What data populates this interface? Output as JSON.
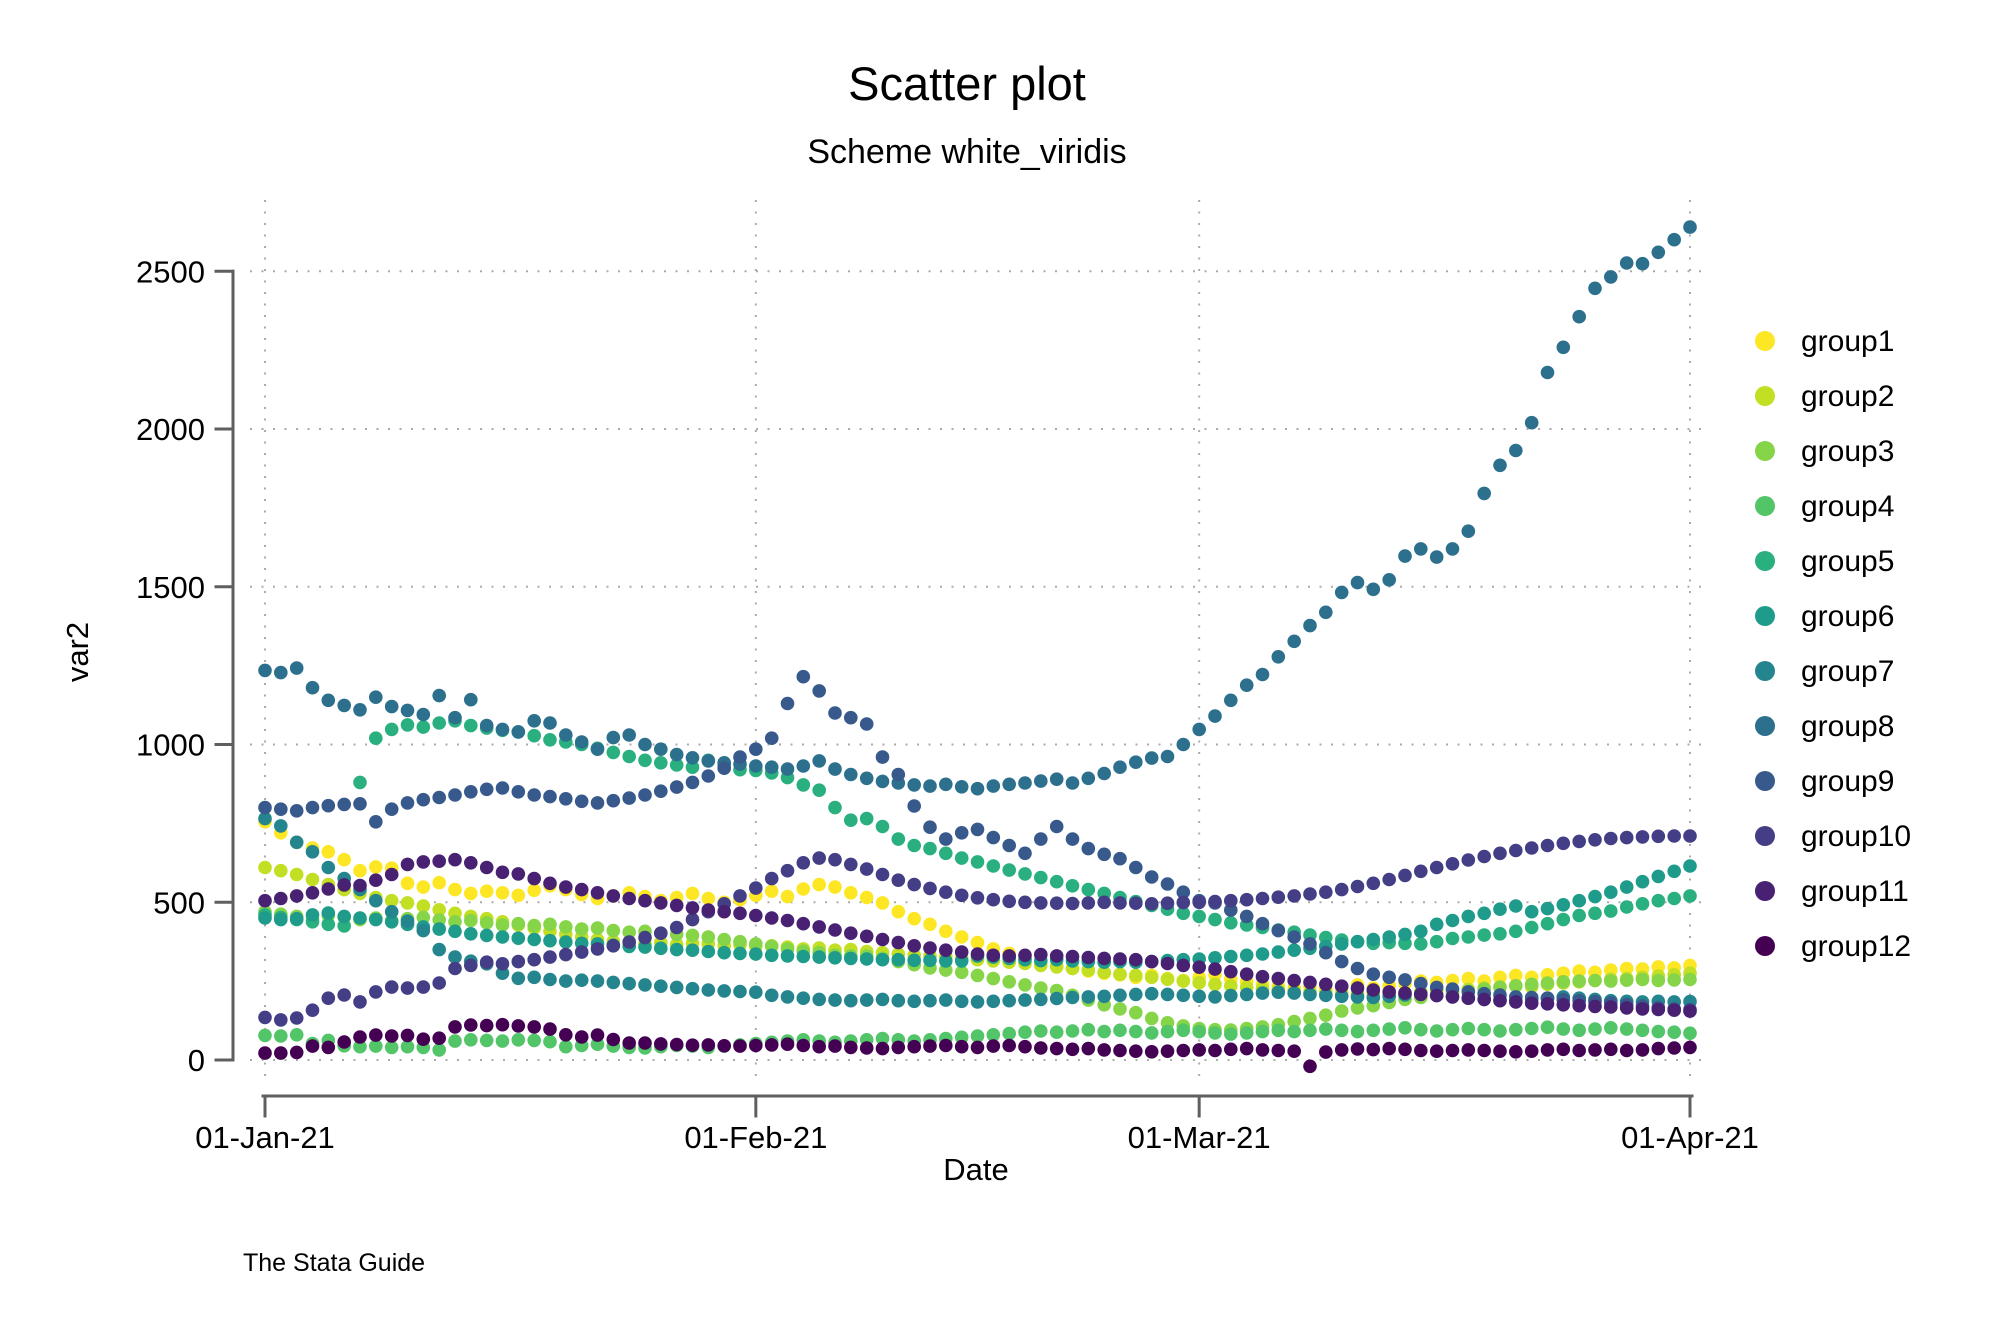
{
  "header": {
    "title": "Scatter plot",
    "subtitle": "Scheme white_viridis"
  },
  "watermark": "The Stata Guide",
  "chart_data": {
    "type": "scatter",
    "title": "Scatter plot",
    "subtitle": "Scheme white_viridis",
    "xlabel": "Date",
    "ylabel": "var2",
    "grid": true,
    "legend_position": "right",
    "x_unit": "days since 01-Jan-21, one point per day",
    "x_tick_labels": [
      "01-Jan-21",
      "01-Feb-21",
      "01-Mar-21",
      "01-Apr-21"
    ],
    "x_tick_days": [
      0,
      31,
      59,
      90
    ],
    "y_tick_labels": [
      "0",
      "500",
      "1000",
      "1500",
      "2000",
      "2500"
    ],
    "y_ticks": [
      0,
      500,
      1000,
      1500,
      2000,
      2500
    ],
    "ylim": [
      -60,
      2720
    ],
    "series": [
      {
        "name": "group1",
        "color": "#fde725",
        "values": [
          755,
          720,
          690,
          672,
          660,
          635,
          600,
          612,
          608,
          560,
          548,
          562,
          540,
          528,
          535,
          530,
          522,
          538,
          552,
          540,
          525,
          512,
          520,
          530,
          518,
          505,
          515,
          528,
          512,
          500,
          508,
          522,
          535,
          518,
          542,
          556,
          548,
          530,
          515,
          498,
          470,
          448,
          430,
          408,
          390,
          372,
          352,
          338,
          322,
          308,
          298,
          290,
          282,
          275,
          270,
          262,
          268,
          258,
          252,
          262,
          270,
          256,
          248,
          240,
          235,
          228,
          232,
          225,
          230,
          238,
          228,
          235,
          242,
          250,
          246,
          252,
          258,
          250,
          262,
          268,
          262,
          270,
          275,
          282,
          278,
          285,
          290,
          288,
          295,
          292,
          300
        ]
      },
      {
        "name": "group2",
        "color": "#c2df23",
        "values": [
          610,
          600,
          588,
          572,
          556,
          540,
          528,
          515,
          505,
          498,
          488,
          476,
          465,
          455,
          448,
          438,
          428,
          418,
          408,
          398,
          390,
          382,
          376,
          372,
          368,
          372,
          366,
          370,
          368,
          362,
          365,
          360,
          362,
          358,
          352,
          355,
          348,
          350,
          344,
          340,
          336,
          332,
          330,
          328,
          322,
          318,
          314,
          310,
          306,
          300,
          295,
          290,
          285,
          278,
          272,
          268,
          262,
          256,
          250,
          245,
          240,
          235,
          230,
          226,
          222,
          219,
          216,
          214,
          212,
          210,
          212,
          214,
          212,
          216,
          220,
          218,
          224,
          228,
          232,
          236,
          232,
          240,
          244,
          248,
          252,
          256,
          258,
          262,
          266,
          270,
          275
        ]
      },
      {
        "name": "group3",
        "color": "#86d549",
        "values": [
          470,
          462,
          455,
          448,
          458,
          452,
          445,
          450,
          442,
          448,
          452,
          444,
          438,
          442,
          435,
          428,
          432,
          426,
          430,
          422,
          415,
          418,
          410,
          405,
          408,
          402,
          398,
          395,
          390,
          382,
          375,
          368,
          360,
          352,
          345,
          340,
          332,
          330,
          330,
          322,
          312,
          302,
          292,
          285,
          278,
          268,
          258,
          248,
          238,
          228,
          220,
          205,
          190,
          175,
          162,
          150,
          132,
          118,
          108,
          100,
          96,
          95,
          100,
          105,
          112,
          122,
          132,
          142,
          155,
          165,
          172,
          182,
          192,
          198,
          205,
          212,
          218,
          225,
          230,
          235,
          240,
          244,
          248,
          250,
          252,
          250,
          253,
          255,
          252,
          254,
          255
        ]
      },
      {
        "name": "group4",
        "color": "#52c569",
        "values": [
          78,
          76,
          80,
          52,
          62,
          45,
          42,
          44,
          40,
          42,
          40,
          32,
          60,
          64,
          62,
          60,
          64,
          62,
          58,
          42,
          46,
          50,
          44,
          40,
          38,
          42,
          46,
          44,
          40,
          44,
          48,
          52,
          56,
          60,
          64,
          60,
          56,
          60,
          64,
          68,
          64,
          60,
          64,
          68,
          72,
          76,
          80,
          84,
          88,
          92,
          88,
          92,
          96,
          90,
          94,
          90,
          86,
          90,
          94,
          90,
          86,
          82,
          86,
          90,
          94,
          90,
          94,
          98,
          94,
          90,
          94,
          98,
          102,
          96,
          92,
          96,
          100,
          96,
          92,
          96,
          100,
          104,
          98,
          94,
          98,
          102,
          98,
          94,
          90,
          88,
          85
        ]
      },
      {
        "name": "group5",
        "color": "#2ab07f",
        "values": [
          460,
          452,
          445,
          438,
          430,
          425,
          880,
          1020,
          1048,
          1062,
          1055,
          1068,
          1075,
          1060,
          1052,
          1045,
          1040,
          1028,
          1015,
          1008,
          1000,
          988,
          975,
          962,
          950,
          942,
          935,
          928,
          950,
          935,
          920,
          918,
          910,
          895,
          872,
          855,
          800,
          760,
          765,
          740,
          700,
          680,
          670,
          655,
          640,
          628,
          615,
          602,
          590,
          578,
          565,
          552,
          540,
          528,
          515,
          502,
          490,
          478,
          465,
          455,
          445,
          435,
          428,
          420,
          412,
          405,
          396,
          388,
          380,
          375,
          370,
          372,
          370,
          368,
          375,
          385,
          390,
          396,
          400,
          408,
          420,
          432,
          445,
          458,
          465,
          472,
          485,
          495,
          505,
          512,
          520
        ]
      },
      {
        "name": "group6",
        "color": "#1e9b8a",
        "values": [
          450,
          445,
          448,
          460,
          466,
          455,
          450,
          445,
          438,
          430,
          422,
          415,
          408,
          400,
          395,
          390,
          386,
          382,
          378,
          374,
          370,
          368,
          364,
          360,
          358,
          354,
          350,
          348,
          344,
          340,
          338,
          336,
          332,
          330,
          328,
          326,
          324,
          322,
          320,
          318,
          318,
          316,
          316,
          314,
          314,
          330,
          326,
          322,
          318,
          315,
          318,
          314,
          312,
          310,
          312,
          310,
          312,
          315,
          318,
          320,
          324,
          328,
          332,
          336,
          342,
          348,
          354,
          360,
          368,
          375,
          382,
          390,
          398,
          408,
          430,
          442,
          455,
          465,
          478,
          488,
          470,
          480,
          492,
          505,
          518,
          532,
          548,
          565,
          582,
          598,
          615
        ]
      },
      {
        "name": "group7",
        "color": "#25858e",
        "values": [
          765,
          742,
          690,
          660,
          610,
          575,
          540,
          505,
          470,
          440,
          410,
          350,
          326,
          313,
          305,
          275,
          259,
          262,
          255,
          250,
          253,
          250,
          246,
          242,
          238,
          234,
          230,
          226,
          222,
          219,
          217,
          215,
          205,
          200,
          196,
          192,
          190,
          188,
          190,
          192,
          188,
          186,
          188,
          190,
          186,
          184,
          186,
          188,
          190,
          192,
          195,
          198,
          200,
          202,
          205,
          208,
          210,
          208,
          205,
          202,
          200,
          204,
          208,
          212,
          215,
          212,
          208,
          205,
          202,
          200,
          198,
          202,
          206,
          210,
          205,
          200,
          196,
          192,
          190,
          188,
          192,
          196,
          200,
          196,
          192,
          188,
          186,
          184,
          186,
          184,
          185
        ]
      },
      {
        "name": "group8",
        "color": "#2d708e",
        "values": [
          1235,
          1228,
          1242,
          1180,
          1140,
          1124,
          1110,
          1150,
          1120,
          1108,
          1095,
          1155,
          1085,
          1142,
          1060,
          1048,
          1040,
          1075,
          1068,
          1030,
          1008,
          985,
          1022,
          1030,
          1000,
          985,
          968,
          958,
          948,
          942,
          938,
          932,
          928,
          922,
          932,
          948,
          922,
          905,
          893,
          883,
          878,
          872,
          868,
          874,
          866,
          860,
          868,
          874,
          878,
          884,
          890,
          878,
          893,
          908,
          928,
          944,
          957,
          962,
          1000,
          1048,
          1090,
          1140,
          1188,
          1222,
          1278,
          1327,
          1377,
          1419,
          1482,
          1513,
          1492,
          1522,
          1597,
          1620,
          1594,
          1620,
          1676,
          1796,
          1885,
          1932,
          2020,
          2179,
          2259,
          2356,
          2446,
          2482,
          2526,
          2524,
          2560,
          2600,
          2640
        ]
      },
      {
        "name": "group9",
        "color": "#38598c",
        "values": [
          800,
          795,
          790,
          800,
          806,
          810,
          812,
          755,
          795,
          815,
          825,
          832,
          840,
          850,
          858,
          862,
          850,
          840,
          835,
          828,
          820,
          815,
          822,
          830,
          840,
          852,
          865,
          880,
          900,
          925,
          960,
          985,
          1020,
          1130,
          1215,
          1170,
          1100,
          1085,
          1065,
          960,
          905,
          805,
          738,
          700,
          720,
          731,
          705,
          680,
          655,
          700,
          740,
          700,
          670,
          652,
          638,
          610,
          580,
          558,
          532,
          505,
          498,
          475,
          455,
          432,
          410,
          390,
          368,
          340,
          312,
          290,
          272,
          262,
          254,
          242,
          230,
          225,
          216,
          210,
          206,
          200,
          198,
          196,
          191,
          188,
          185,
          181,
          176,
          171,
          166,
          162,
          160
        ]
      },
      {
        "name": "group10",
        "color": "#433e85",
        "values": [
          135,
          127,
          133,
          158,
          196,
          206,
          184,
          216,
          231,
          228,
          231,
          244,
          290,
          300,
          310,
          305,
          312,
          318,
          326,
          334,
          342,
          352,
          362,
          374,
          388,
          402,
          420,
          445,
          470,
          495,
          520,
          545,
          575,
          600,
          625,
          640,
          635,
          620,
          605,
          588,
          570,
          556,
          544,
          532,
          522,
          514,
          508,
          503,
          500,
          498,
          497,
          496,
          498,
          500,
          498,
          497,
          495,
          497,
          499,
          500,
          502,
          505,
          508,
          512,
          516,
          520,
          526,
          532,
          540,
          550,
          560,
          572,
          585,
          598,
          610,
          622,
          634,
          645,
          655,
          664,
          672,
          680,
          687,
          693,
          698,
          702,
          705,
          707,
          709,
          710,
          710
        ]
      },
      {
        "name": "group11",
        "color": "#482173",
        "values": [
          505,
          512,
          520,
          530,
          542,
          555,
          553,
          570,
          588,
          620,
          628,
          630,
          635,
          625,
          610,
          595,
          590,
          575,
          560,
          548,
          540,
          530,
          520,
          512,
          505,
          498,
          490,
          482,
          475,
          470,
          465,
          458,
          450,
          442,
          432,
          422,
          412,
          402,
          392,
          382,
          372,
          362,
          355,
          348,
          342,
          336,
          332,
          330,
          332,
          334,
          330,
          328,
          325,
          322,
          320,
          318,
          312,
          306,
          300,
          294,
          288,
          280,
          272,
          264,
          258,
          252,
          246,
          240,
          234,
          228,
          222,
          216,
          212,
          208,
          204,
          200,
          196,
          192,
          188,
          184,
          180,
          178,
          175,
          172,
          170,
          168,
          165,
          162,
          160,
          158,
          155
        ]
      },
      {
        "name": "group12",
        "color": "#440154",
        "values": [
          22,
          22,
          24,
          44,
          40,
          57,
          73,
          79,
          76,
          78,
          66,
          69,
          105,
          111,
          109,
          112,
          108,
          105,
          98,
          80,
          73,
          79,
          65,
          54,
          54,
          51,
          49,
          47,
          48,
          45,
          44,
          46,
          48,
          50,
          46,
          42,
          44,
          40,
          38,
          36,
          40,
          42,
          44,
          46,
          42,
          40,
          44,
          46,
          42,
          38,
          36,
          34,
          36,
          32,
          30,
          28,
          26,
          28,
          30,
          32,
          30,
          34,
          36,
          32,
          30,
          28,
          -20,
          25,
          32,
          35,
          33,
          36,
          34,
          30,
          28,
          30,
          32,
          30,
          28,
          26,
          28,
          32,
          34,
          30,
          32,
          34,
          30,
          32,
          36,
          38,
          40
        ]
      }
    ]
  }
}
